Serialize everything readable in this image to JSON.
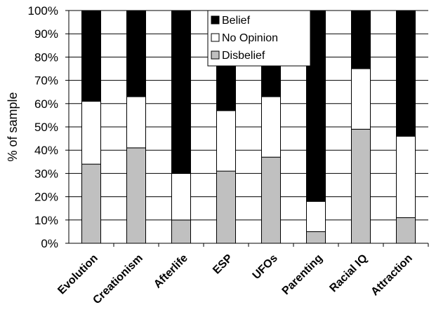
{
  "chart_data": {
    "type": "bar",
    "stacked": true,
    "categories": [
      "Evolution",
      "Creationism",
      "Afterlife",
      "ESP",
      "UFOs",
      "Parenting",
      "Racial IQ",
      "Attraction"
    ],
    "series": [
      {
        "name": "Disbelief",
        "color": "#c0c0c0",
        "values": [
          34,
          41,
          10,
          31,
          37,
          5,
          49,
          11
        ]
      },
      {
        "name": "No Opinion",
        "color": "#ffffff",
        "values": [
          27,
          22,
          20,
          26,
          26,
          13,
          26,
          35
        ]
      },
      {
        "name": "Belief",
        "color": "#000000",
        "values": [
          39,
          37,
          70,
          43,
          37,
          82,
          25,
          54
        ]
      }
    ],
    "legend_order": [
      "Belief",
      "No Opinion",
      "Disbelief"
    ],
    "legend_placement": "top-center",
    "title": "",
    "xlabel": "",
    "ylabel": "% of sample",
    "ylim": [
      0,
      100
    ],
    "yticks": [
      "0%",
      "10%",
      "20%",
      "30%",
      "40%",
      "50%",
      "60%",
      "70%",
      "80%",
      "90%",
      "100%"
    ],
    "grid": "horizontal"
  }
}
